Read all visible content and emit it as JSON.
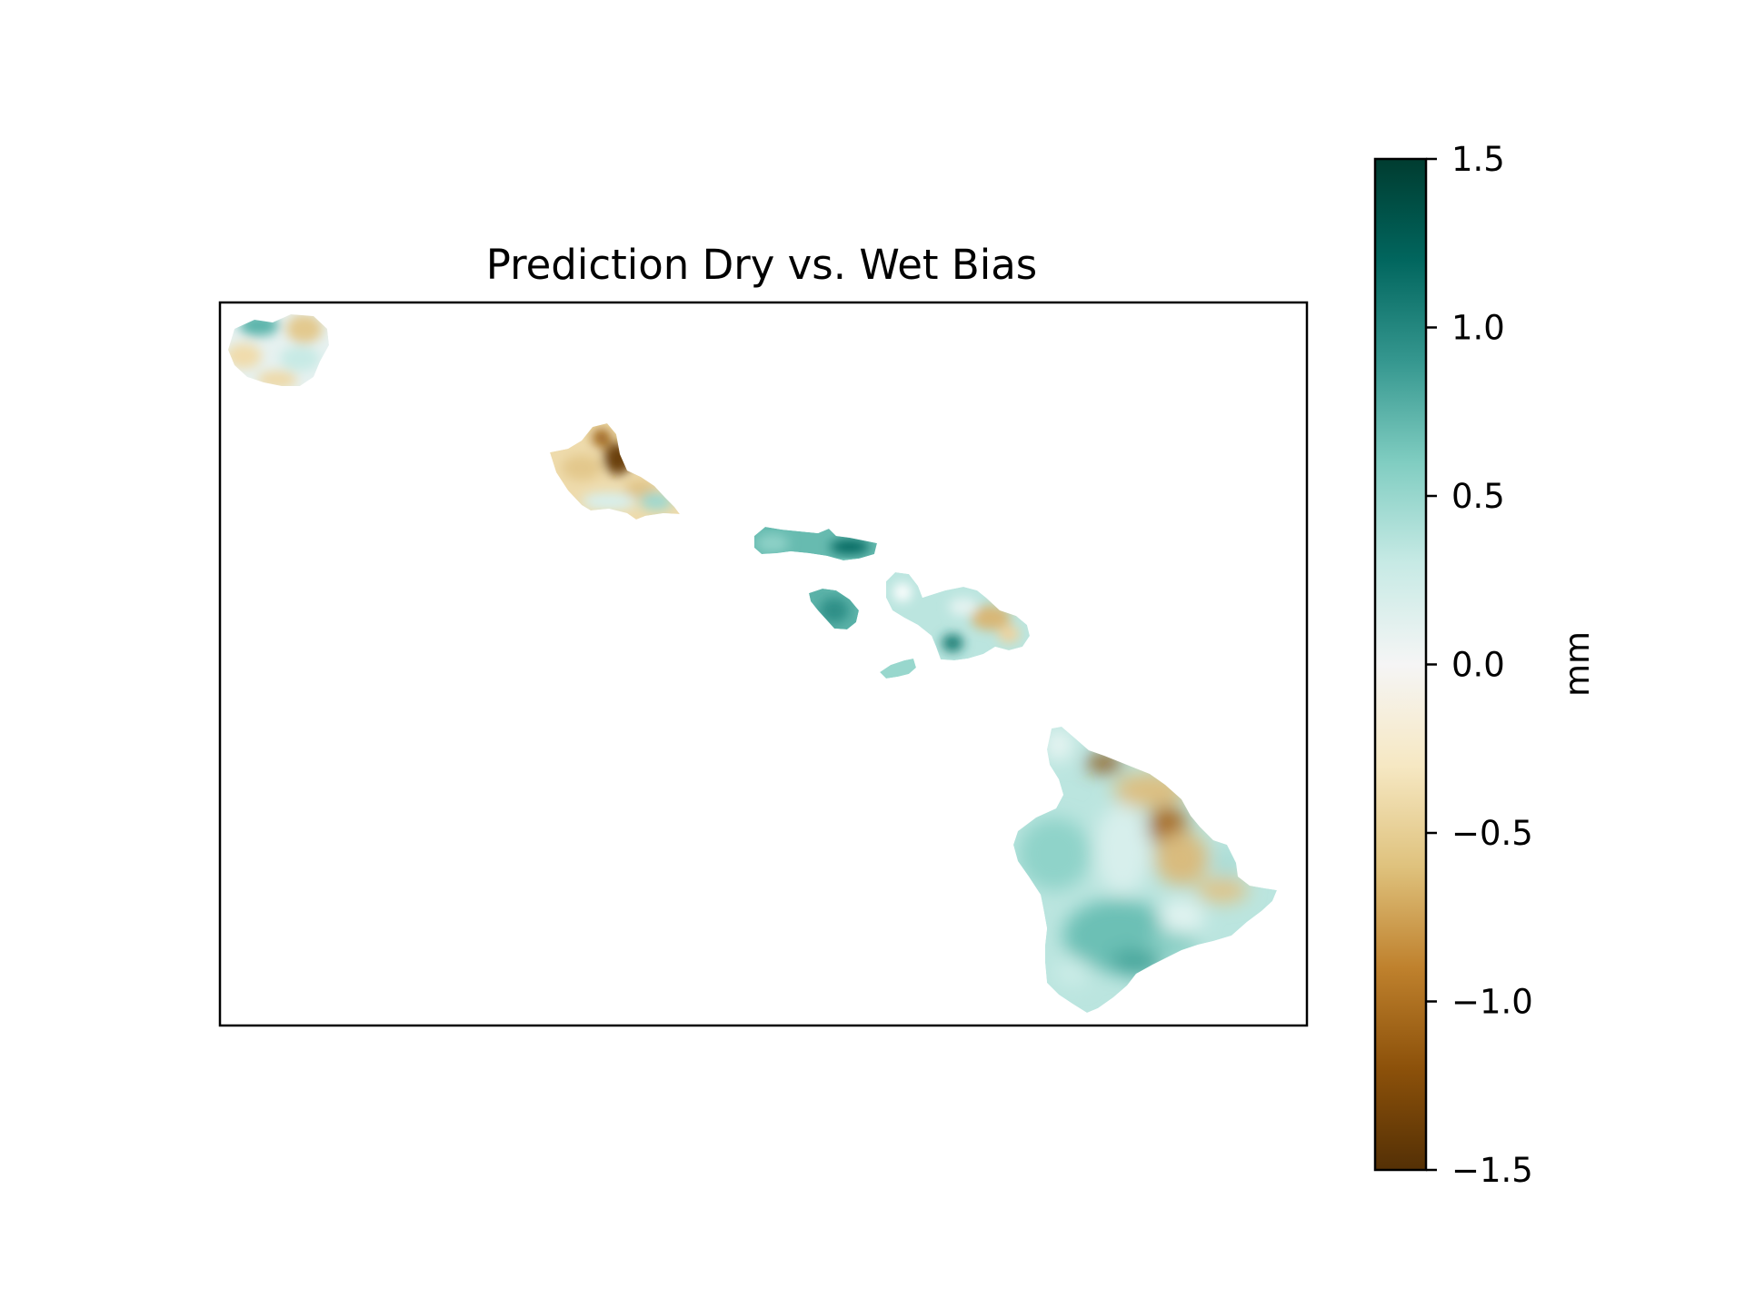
{
  "map": {
    "title": "Prediction Dry vs. Wet Bias",
    "colormap_name": "BrBG",
    "colorbar": {
      "label": "mm",
      "vmin": -1.5,
      "vmax": 1.5,
      "ticks": [
        {
          "value": 1.5,
          "label": "1.5"
        },
        {
          "value": 1.0,
          "label": "1.0"
        },
        {
          "value": 0.5,
          "label": "0.5"
        },
        {
          "value": 0.0,
          "label": "0.0"
        },
        {
          "value": -0.5,
          "label": "−0.5"
        },
        {
          "value": -1.0,
          "label": "−1.0"
        },
        {
          "value": -1.5,
          "label": "−1.5"
        }
      ],
      "colors": [
        "#543005",
        "#8c510a",
        "#bf812d",
        "#dfc27d",
        "#f6e8c3",
        "#f5f5f5",
        "#c7eae5",
        "#80cdc1",
        "#35978f",
        "#01665e",
        "#003c30"
      ]
    },
    "islands": [
      {
        "name": "Kauai",
        "mean_bias": 0.1
      },
      {
        "name": "Oahu",
        "mean_bias": -0.4
      },
      {
        "name": "Molokai",
        "mean_bias": 0.7
      },
      {
        "name": "Lanai",
        "mean_bias": 0.75
      },
      {
        "name": "Maui",
        "mean_bias": 0.35
      },
      {
        "name": "Kahoolawe",
        "mean_bias": 0.5
      },
      {
        "name": "Hawaii",
        "mean_bias": 0.35
      }
    ]
  }
}
